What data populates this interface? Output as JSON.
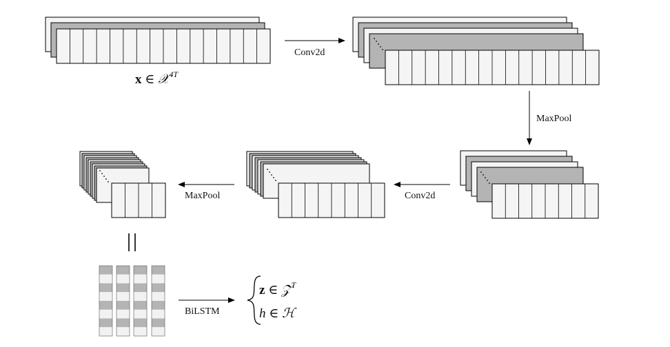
{
  "diagram": {
    "input_label": {
      "bold": "x",
      "in": " ∈ ",
      "space": "𝒳",
      "sup": "4T"
    },
    "steps": [
      {
        "label": "Conv2d"
      },
      {
        "label": "MaxPool"
      },
      {
        "label": "Conv2d"
      },
      {
        "label": "MaxPool"
      },
      {
        "label": "BiLSTM"
      }
    ],
    "equals_symbol": "||",
    "outputs": {
      "z": {
        "bold": "z",
        "in": " ∈ ",
        "space": "𝒵",
        "sup": "T"
      },
      "h": {
        "var": "h",
        "in": " ∈ ",
        "space": "ℋ"
      }
    }
  },
  "colors": {
    "stroke": "#000000",
    "light_fill": "#f2f2f2",
    "mid_fill": "#b4b4b4",
    "white": "#ffffff"
  }
}
